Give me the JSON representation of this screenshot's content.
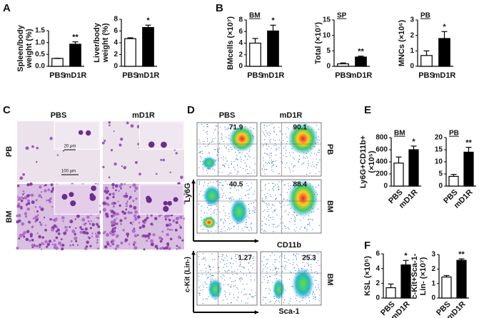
{
  "panel_labels": [
    "A",
    "B",
    "C",
    "D",
    "E",
    "F"
  ],
  "chart_data": [
    {
      "type": "bar",
      "y_label": [
        "Spleen/body",
        "weight (%)"
      ],
      "categories": [
        "PBS",
        "mD1R"
      ],
      "values": [
        0.33,
        0.93
      ],
      "errors": [
        0.01,
        0.1
      ],
      "colors": [
        "#ffffff",
        "#000000"
      ],
      "significance": "**",
      "ylim": [
        0,
        1.5
      ],
      "yticks": [
        {
          "value": 0,
          "label": "0.0"
        },
        0.5,
        {
          "value": 1,
          "label": "1.0"
        },
        1.5
      ]
    },
    {
      "type": "bar",
      "y_label": [
        "Liver/body",
        "weight (%)"
      ],
      "categories": [
        "PBS",
        "mD1R"
      ],
      "values": [
        4.7,
        6.6
      ],
      "errors": [
        0.15,
        0.4
      ],
      "colors": [
        "#ffffff",
        "#000000"
      ],
      "significance": "*",
      "ylim": [
        0,
        8
      ],
      "yticks": [
        0,
        2,
        4,
        6,
        8
      ]
    },
    {
      "type": "bar",
      "subtitle": "BM",
      "y_label": [
        "BMcells (×10⁷)"
      ],
      "categories": [
        "PBS",
        "mD1R"
      ],
      "values": [
        4.0,
        6.1
      ],
      "errors": [
        0.8,
        1.0
      ],
      "colors": [
        "#ffffff",
        "#000000"
      ],
      "significance": "*",
      "ylim": [
        0,
        8
      ],
      "yticks": [
        0,
        2,
        4,
        6,
        8
      ]
    },
    {
      "type": "bar",
      "subtitle": "SP",
      "y_label": [
        "Total (×10⁷)"
      ],
      "categories": [
        "PBS",
        "mD1R"
      ],
      "values": [
        0.8,
        3.0
      ],
      "errors": [
        0.3,
        0.3
      ],
      "colors": [
        "#ffffff",
        "#000000"
      ],
      "significance": "**",
      "ylim": [
        0,
        15
      ],
      "yticks": [
        0,
        5,
        10,
        15
      ]
    },
    {
      "type": "bar",
      "subtitle": "PB",
      "y_label": [
        "MNCs (×10⁶)"
      ],
      "categories": [
        "PBS",
        "mD1R"
      ],
      "values": [
        0.7,
        1.8
      ],
      "errors": [
        0.3,
        0.45
      ],
      "colors": [
        "#ffffff",
        "#000000"
      ],
      "significance": "*",
      "ylim": [
        0,
        3
      ],
      "yticks": [
        0,
        1,
        2,
        3
      ]
    },
    {
      "type": "bar",
      "subtitle": "BM",
      "y_label": [
        "Ly6G+CD11b+",
        "(×10⁵)"
      ],
      "categories": [
        "PBS",
        "mD1R"
      ],
      "values": [
        380,
        600
      ],
      "errors": [
        100,
        60
      ],
      "colors": [
        "#ffffff",
        "#000000"
      ],
      "significance": "*",
      "ylim": [
        0,
        800
      ],
      "yticks": [
        0,
        200,
        400,
        600,
        800
      ],
      "rotate_categories": true
    },
    {
      "type": "bar",
      "subtitle": "PB",
      "categories": [
        "PBS",
        "mD1R"
      ],
      "values": [
        4,
        14
      ],
      "errors": [
        0.8,
        2
      ],
      "colors": [
        "#ffffff",
        "#000000"
      ],
      "significance": "**",
      "ylim": [
        0,
        20
      ],
      "yticks": [
        0,
        5,
        10,
        15,
        20
      ],
      "rotate_categories": true
    },
    {
      "type": "bar",
      "y_label": [
        "KSL (×10⁵)"
      ],
      "categories": [
        "PBS",
        "mD1R"
      ],
      "values": [
        1.4,
        4.5
      ],
      "errors": [
        0.5,
        0.6
      ],
      "colors": [
        "#ffffff",
        "#000000"
      ],
      "significance": "*",
      "ylim": [
        0,
        6
      ],
      "yticks": [
        0,
        2,
        4,
        6
      ],
      "rotate_categories": true
    },
    {
      "type": "bar",
      "y_label": [
        "c-Kit+Sca-1-",
        "Lin- (×10⁷)"
      ],
      "categories": [
        "PBS",
        "mD1R"
      ],
      "values": [
        1.45,
        2.6
      ],
      "errors": [
        0.1,
        0.1
      ],
      "colors": [
        "#ffffff",
        "#000000"
      ],
      "significance": "**",
      "ylim": [
        0,
        3
      ],
      "yticks": [
        0,
        1,
        2,
        3
      ],
      "rotate_categories": true
    }
  ],
  "microscopy": {
    "columns": [
      "PBS",
      "mD1R"
    ],
    "rows": [
      "PB",
      "BM"
    ],
    "scale_bars": [
      "20 μm",
      "100 μm"
    ]
  },
  "flow": {
    "columns": [
      "PBS",
      "mD1R"
    ],
    "rows": [
      "PB",
      "BM"
    ],
    "percentages": [
      [
        71.9,
        90.1
      ],
      [
        40.5,
        88.4
      ]
    ],
    "x_label": "CD11b",
    "y_label": "Ly6G",
    "stem": {
      "percentages": [
        1.27,
        25.3
      ],
      "row": "BM",
      "x_label": "Sca-1",
      "y_label": "c-Kit (Lin-)"
    }
  }
}
